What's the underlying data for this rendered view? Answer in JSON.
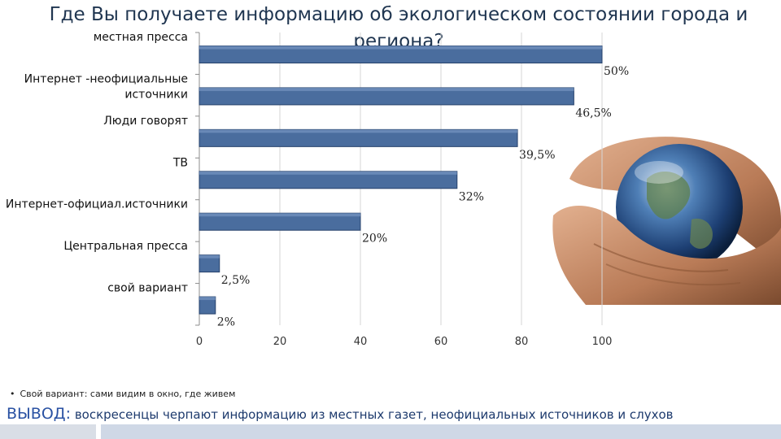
{
  "slide": {
    "title": "Где Вы получаете информацию об экологическом состоянии города и региона?",
    "footnote": "Свой вариант: сами видим в окно, где живем",
    "conclusion_label": "ВЫВОД:",
    "conclusion_text": "воскресенцы черпают информацию из местных газет, неофициальных источников и слухов"
  },
  "colors": {
    "bar": "#4a6d9e",
    "bar_dark": "#26416b",
    "title": "#1f3550",
    "conclusion": "#1d3a6d"
  },
  "chart_data": {
    "type": "bar",
    "orientation": "horizontal",
    "title": "Где Вы получаете информацию об экологическом состоянии города и региона?",
    "categories": [
      "местная пресса",
      "Интернет -неофициальные источники",
      "Люди говорят",
      "ТВ",
      "Интернет-официал.источники",
      "Центральная пресса",
      "свой вариант"
    ],
    "category_lines": [
      [
        "местная пресса"
      ],
      [
        "Интернет -неофициальные",
        "источники"
      ],
      [
        "Люди говорят"
      ],
      [
        "ТВ"
      ],
      [
        "Интернет-официал.источники"
      ],
      [
        "Центральная пресса"
      ],
      [
        "свой вариант"
      ]
    ],
    "values": [
      100,
      93,
      79,
      64,
      40,
      5,
      4
    ],
    "data_labels": [
      "50%",
      "46,5%",
      "39,5%",
      "32%",
      "20%",
      "2,5%",
      "2%"
    ],
    "xlim": [
      0,
      100
    ],
    "x_ticks": [
      "0",
      "20",
      "40",
      "60",
      "80",
      "100"
    ],
    "grid": true,
    "xlabel": "",
    "ylabel": ""
  }
}
